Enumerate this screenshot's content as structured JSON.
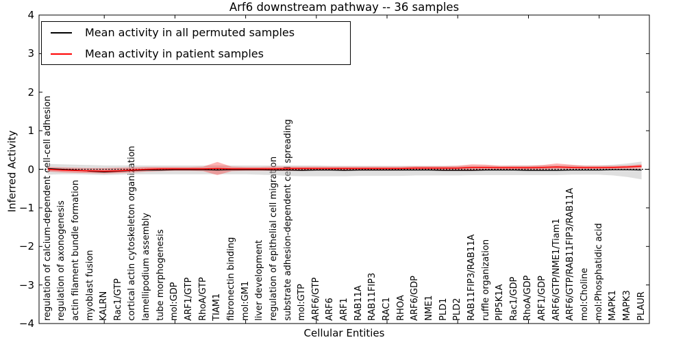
{
  "chart_data": {
    "type": "line",
    "title": "Arf6 downstream pathway -- 36 samples",
    "xlabel": "Cellular Entities",
    "ylabel": "Inferred Activity",
    "ylim": [
      -4,
      4
    ],
    "grid": false,
    "legend_position": "upper left",
    "y_ticks": [
      {
        "value": 4,
        "label": "4"
      },
      {
        "value": 3,
        "label": "3"
      },
      {
        "value": 2,
        "label": "2"
      },
      {
        "value": 1,
        "label": "1"
      },
      {
        "value": 0,
        "label": "0"
      },
      {
        "value": -1,
        "label": "−1"
      },
      {
        "value": -2,
        "label": "−2"
      },
      {
        "value": -3,
        "label": "−3"
      },
      {
        "value": -4,
        "label": "−4"
      }
    ],
    "x_major_tick_indices": [
      4,
      9,
      14,
      19,
      24,
      29,
      34,
      39
    ],
    "categories": [
      "regulation of calcium-dependent cell-cell adhesion",
      "regulation of axonogenesis",
      "actin filament bundle formation",
      "myoblast fusion",
      "KALRN",
      "Rac1/GTP",
      "cortical actin cytoskeleton organization",
      "lamellipodium assembly",
      "tube morphogenesis",
      "mol:GDP",
      "ARF1/GTP",
      "RhoA/GTP",
      "TIAM1",
      "fibronectin binding",
      "mol:GM1",
      "liver development",
      "regulation of epithelial cell migration",
      "substrate adhesion-dependent cell spreading",
      "mol:GTP",
      "ARF6/GTP",
      "ARF6",
      "ARF1",
      "RAB11A",
      "RAB11FIP3",
      "RAC1",
      "RHOA",
      "ARF6/GDP",
      "NME1",
      "PLD1",
      "PLD2",
      "RAB11FIP3/RAB11A",
      "ruffle organization",
      "PIP5K1A",
      "Rac1/GDP",
      "RhoA/GDP",
      "ARF1/GDP",
      "ARF6/GTP/NME1/Tiam1",
      "ARF6/GTP/RAB11FIP3/RAB11A",
      "mol:Choline",
      "mol:Phosphatidic acid",
      "MAPK1",
      "MAPK3",
      "PLAUR"
    ],
    "series": [
      {
        "name": "Mean activity in all permuted samples",
        "id": "permuted-mean-line",
        "color": "#000000",
        "width": 1.3,
        "values": [
          0.02,
          0.0,
          -0.02,
          -0.05,
          -0.07,
          -0.05,
          -0.03,
          -0.02,
          -0.02,
          -0.01,
          -0.01,
          -0.01,
          -0.02,
          -0.01,
          -0.01,
          -0.01,
          -0.02,
          -0.02,
          -0.03,
          -0.02,
          -0.02,
          -0.03,
          -0.02,
          -0.02,
          -0.02,
          -0.02,
          -0.02,
          -0.02,
          -0.03,
          -0.03,
          -0.03,
          -0.02,
          -0.02,
          -0.02,
          -0.03,
          -0.03,
          -0.03,
          -0.02,
          -0.02,
          -0.02,
          -0.01,
          -0.01,
          -0.02
        ]
      },
      {
        "name": "Mean activity in patient samples",
        "id": "patient-mean-line",
        "color": "#ff0000",
        "width": 1.5,
        "values": [
          0.0,
          -0.02,
          -0.03,
          -0.04,
          -0.05,
          -0.04,
          -0.02,
          0.0,
          0.01,
          0.01,
          0.01,
          0.01,
          0.02,
          0.01,
          0.01,
          0.01,
          0.01,
          0.02,
          0.02,
          0.02,
          0.02,
          0.02,
          0.02,
          0.02,
          0.02,
          0.02,
          0.03,
          0.03,
          0.03,
          0.03,
          0.05,
          0.05,
          0.04,
          0.04,
          0.04,
          0.05,
          0.06,
          0.05,
          0.04,
          0.04,
          0.05,
          0.06,
          0.08
        ]
      }
    ],
    "bands": [
      {
        "name": "permuted-range",
        "color": "#bfbfbf",
        "opacity": 0.5,
        "upper": [
          0.14,
          0.13,
          0.12,
          0.11,
          0.1,
          0.1,
          0.1,
          0.1,
          0.1,
          0.1,
          0.1,
          0.1,
          0.1,
          0.1,
          0.1,
          0.1,
          0.1,
          0.1,
          0.1,
          0.1,
          0.09,
          0.09,
          0.09,
          0.09,
          0.09,
          0.09,
          0.09,
          0.09,
          0.09,
          0.09,
          0.09,
          0.09,
          0.09,
          0.1,
          0.1,
          0.1,
          0.1,
          0.1,
          0.1,
          0.1,
          0.12,
          0.15,
          0.2
        ],
        "lower": [
          -0.14,
          -0.13,
          -0.13,
          -0.14,
          -0.15,
          -0.14,
          -0.13,
          -0.13,
          -0.13,
          -0.13,
          -0.13,
          -0.13,
          -0.13,
          -0.13,
          -0.13,
          -0.14,
          -0.15,
          -0.17,
          -0.18,
          -0.18,
          -0.18,
          -0.18,
          -0.17,
          -0.17,
          -0.17,
          -0.17,
          -0.16,
          -0.16,
          -0.16,
          -0.16,
          -0.15,
          -0.15,
          -0.15,
          -0.15,
          -0.15,
          -0.15,
          -0.15,
          -0.14,
          -0.14,
          -0.14,
          -0.16,
          -0.2,
          -0.26
        ]
      },
      {
        "name": "patient-range",
        "color": "#ff0000",
        "opacity": 0.3,
        "upper": [
          0.06,
          0.05,
          0.04,
          0.03,
          0.03,
          0.04,
          0.05,
          0.06,
          0.06,
          0.06,
          0.06,
          0.07,
          0.19,
          0.07,
          0.06,
          0.06,
          0.07,
          0.07,
          0.07,
          0.07,
          0.07,
          0.07,
          0.07,
          0.07,
          0.07,
          0.07,
          0.08,
          0.08,
          0.08,
          0.09,
          0.13,
          0.12,
          0.09,
          0.09,
          0.09,
          0.11,
          0.15,
          0.12,
          0.09,
          0.09,
          0.09,
          0.1,
          0.13
        ],
        "lower": [
          -0.06,
          -0.08,
          -0.09,
          -0.1,
          -0.11,
          -0.1,
          -0.08,
          -0.06,
          -0.05,
          -0.04,
          -0.04,
          -0.05,
          -0.15,
          -0.05,
          -0.04,
          -0.04,
          -0.04,
          -0.04,
          -0.04,
          -0.03,
          -0.03,
          -0.03,
          -0.03,
          -0.03,
          -0.03,
          -0.03,
          -0.02,
          -0.02,
          -0.02,
          -0.02,
          -0.02,
          -0.02,
          -0.01,
          -0.01,
          -0.01,
          -0.01,
          0.0,
          0.0,
          0.01,
          0.01,
          0.01,
          0.01,
          0.02
        ]
      }
    ],
    "zero_line": {
      "style": "dashed",
      "color": "#000000",
      "y": 0
    }
  }
}
